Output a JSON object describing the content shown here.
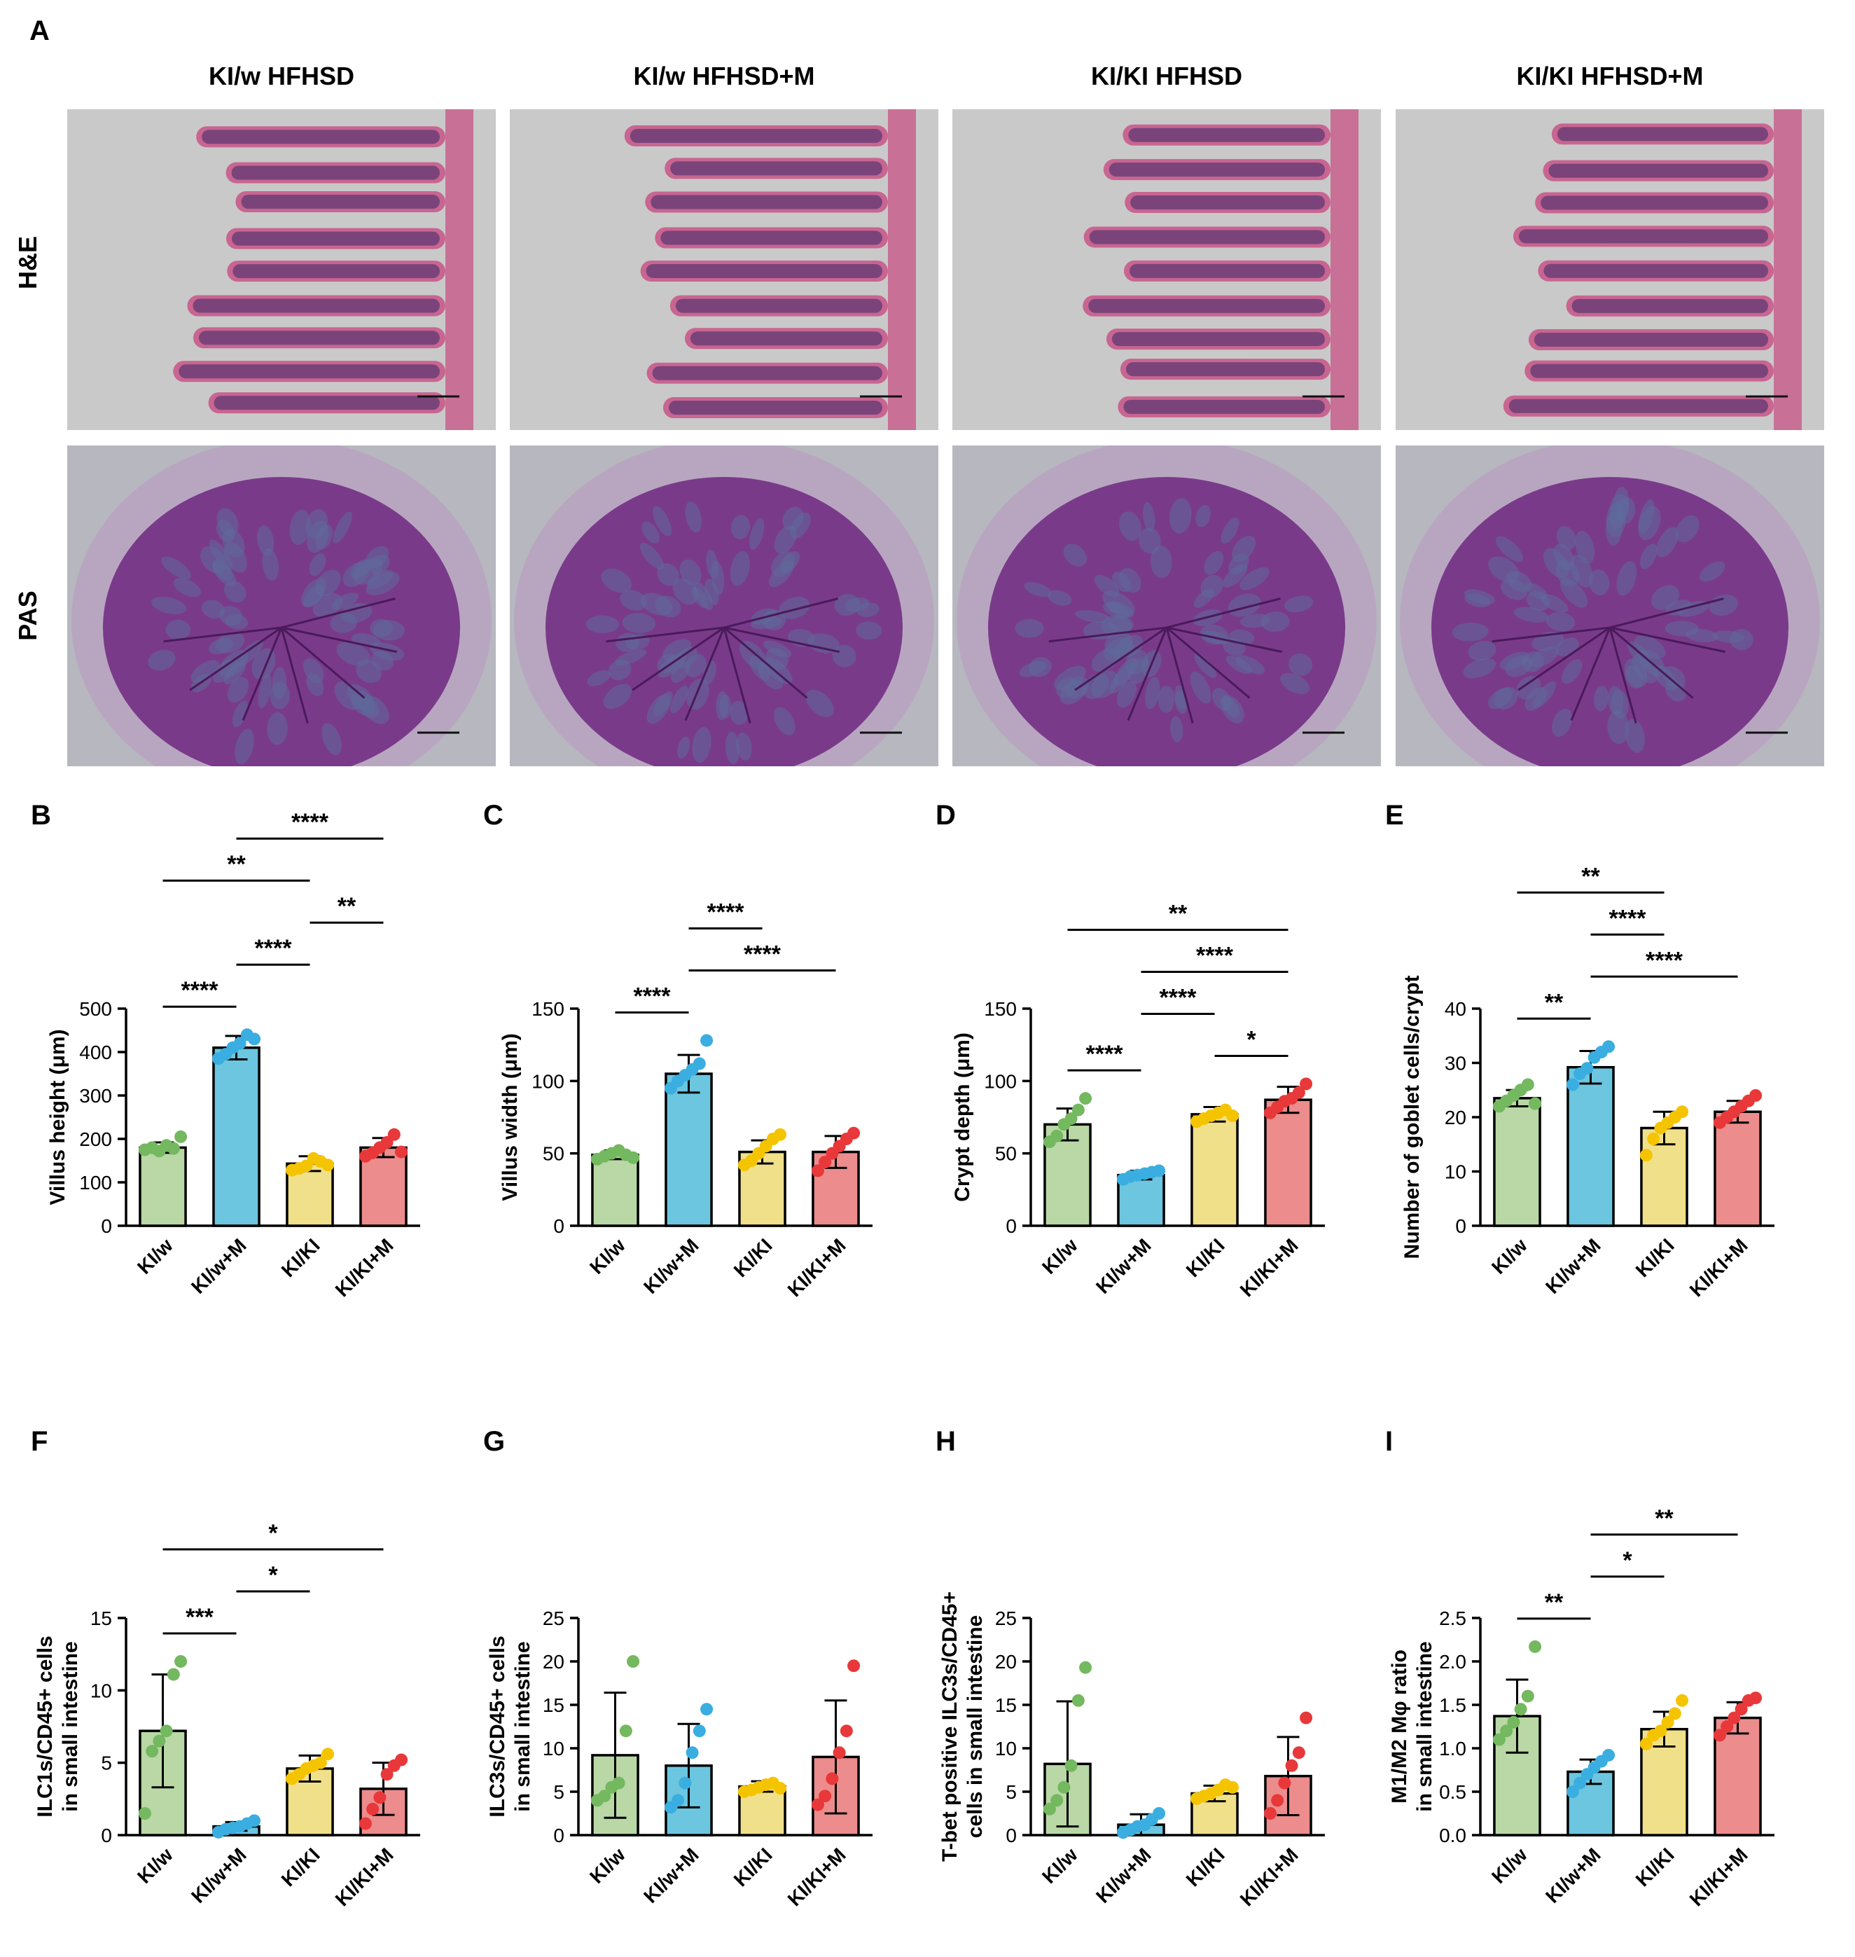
{
  "panel_letters": {
    "A": "A",
    "B": "B",
    "C": "C",
    "D": "D",
    "E": "E",
    "F": "F",
    "G": "G",
    "H": "H",
    "I": "I"
  },
  "histology": {
    "columns": [
      "KI/w HFHSD",
      "KI/w HFHSD+M",
      "KI/KI HFHSD",
      "KI/KI HFHSD+M"
    ],
    "rows": [
      "H&E",
      "PAS"
    ],
    "colors": {
      "he_background": "#c9c9c9",
      "he_tissue": "#c85a8a",
      "he_nuclei": "#3a2a6a",
      "pas_background": "#b7b7bf",
      "pas_tissue": "#7a3a8a",
      "pas_muscle": "#b8a6c0"
    }
  },
  "group_colors": {
    "KI/w": "#74b85f",
    "KI/w+M": "#3aaee0",
    "KI/KI": "#f5c400",
    "KI/KI+M": "#e8383a"
  },
  "bar_fills": {
    "KI/w": "#b9d8a6",
    "KI/w+M": "#6cc6df",
    "KI/KI": "#f1e08a",
    "KI/KI+M": "#ec8c8c"
  },
  "chart_data": [
    {
      "panel": "B",
      "type": "bar",
      "categories": [
        "KI/w",
        "KI/w+M",
        "KI/KI",
        "KI/KI+M"
      ],
      "ylabel": "Villus height (μm)",
      "ylim": [
        0,
        500
      ],
      "yticks": [
        0,
        100,
        200,
        300,
        400,
        500
      ],
      "values": [
        180,
        410,
        143,
        180
      ],
      "errors": [
        12,
        27,
        17,
        22
      ],
      "points": [
        [
          175,
          180,
          172,
          185,
          178,
          205
        ],
        [
          385,
          395,
          410,
          420,
          440,
          430
        ],
        [
          128,
          132,
          138,
          155,
          148,
          140
        ],
        [
          160,
          168,
          180,
          192,
          210,
          170
        ]
      ],
      "significance": [
        {
          "from": 0,
          "to": 1,
          "label": "****"
        },
        {
          "from": 1,
          "to": 2,
          "label": "****"
        },
        {
          "from": 2,
          "to": 3,
          "label": "**"
        },
        {
          "from": 0,
          "to": 2,
          "label": "**"
        },
        {
          "from": 1,
          "to": 3,
          "label": "****"
        }
      ]
    },
    {
      "panel": "C",
      "type": "bar",
      "categories": [
        "KI/w",
        "KI/w+M",
        "KI/KI",
        "KI/KI+M"
      ],
      "ylabel": "Villus width (μm)",
      "ylim": [
        0,
        150
      ],
      "yticks": [
        0,
        50,
        100,
        150
      ],
      "values": [
        49,
        105,
        51,
        51
      ],
      "errors": [
        3,
        13,
        8,
        11
      ],
      "points": [
        [
          46,
          48,
          50,
          52,
          49,
          47
        ],
        [
          95,
          100,
          104,
          108,
          112,
          128
        ],
        [
          42,
          45,
          50,
          55,
          60,
          63
        ],
        [
          38,
          44,
          50,
          55,
          60,
          64
        ]
      ],
      "significance": [
        {
          "from": 0,
          "to": 1,
          "label": "****"
        },
        {
          "from": 1,
          "to": 3,
          "label": "****"
        },
        {
          "from": 1,
          "to": 2,
          "label": "****"
        }
      ]
    },
    {
      "panel": "D",
      "type": "bar",
      "categories": [
        "KI/w",
        "KI/w+M",
        "KI/KI",
        "KI/KI+M"
      ],
      "ylabel": "Crypt depth (μm)",
      "ylim": [
        0,
        150
      ],
      "yticks": [
        0,
        50,
        100,
        150
      ],
      "values": [
        70,
        35,
        77,
        87
      ],
      "errors": [
        11,
        3,
        5,
        9
      ],
      "points": [
        [
          58,
          62,
          70,
          74,
          80,
          88
        ],
        [
          32,
          34,
          35,
          36,
          37,
          38
        ],
        [
          72,
          74,
          76,
          78,
          80,
          76
        ],
        [
          78,
          82,
          86,
          88,
          92,
          98
        ]
      ],
      "significance": [
        {
          "from": 0,
          "to": 1,
          "label": "****"
        },
        {
          "from": 2,
          "to": 3,
          "label": "*"
        },
        {
          "from": 1,
          "to": 2,
          "label": "****"
        },
        {
          "from": 1,
          "to": 3,
          "label": "****"
        },
        {
          "from": 0,
          "to": 3,
          "label": "**"
        }
      ]
    },
    {
      "panel": "E",
      "type": "bar",
      "categories": [
        "KI/w",
        "KI/w+M",
        "KI/KI",
        "KI/KI+M"
      ],
      "ylabel": "Number of goblet cells/crypt",
      "ylim": [
        0,
        40
      ],
      "yticks": [
        0,
        10,
        20,
        30,
        40
      ],
      "values": [
        23.5,
        29.2,
        18,
        21
      ],
      "errors": [
        1.5,
        3,
        3,
        2
      ],
      "points": [
        [
          22,
          23,
          24,
          25,
          26,
          22.5
        ],
        [
          26,
          28,
          29,
          31,
          32,
          33
        ],
        [
          13,
          16,
          18,
          19,
          20,
          21
        ],
        [
          19,
          20,
          21,
          22,
          23,
          24
        ]
      ],
      "significance": [
        {
          "from": 0,
          "to": 1,
          "label": "**"
        },
        {
          "from": 1,
          "to": 3,
          "label": "****"
        },
        {
          "from": 1,
          "to": 2,
          "label": "****"
        },
        {
          "from": 0,
          "to": 2,
          "label": "**"
        }
      ]
    },
    {
      "panel": "F",
      "type": "bar",
      "categories": [
        "KI/w",
        "KI/w+M",
        "KI/KI",
        "KI/KI+M"
      ],
      "ylabel": "ILC1s/CD45+ cells\nin small intestine",
      "ylim": [
        0,
        15
      ],
      "yticks": [
        0,
        5,
        10,
        15
      ],
      "values": [
        7.2,
        0.6,
        4.6,
        3.2
      ],
      "errors": [
        3.9,
        0.3,
        0.9,
        1.8
      ],
      "points": [
        [
          1.5,
          5.8,
          6.5,
          7.2,
          11.1,
          12
        ],
        [
          0.2,
          0.4,
          0.5,
          0.6,
          0.8,
          1.0
        ],
        [
          3.9,
          4.2,
          4.6,
          4.8,
          5.0,
          5.6
        ],
        [
          0.8,
          1.8,
          2.6,
          4.2,
          4.8,
          5.2
        ]
      ],
      "significance": [
        {
          "from": 0,
          "to": 1,
          "label": "***"
        },
        {
          "from": 1,
          "to": 2,
          "label": "*"
        },
        {
          "from": 0,
          "to": 3,
          "label": "*"
        }
      ]
    },
    {
      "panel": "G",
      "type": "bar",
      "categories": [
        "KI/w",
        "KI/w+M",
        "KI/KI",
        "KI/KI+M"
      ],
      "ylabel": "ILC3s/CD45+ cells\nin small intestine",
      "ylim": [
        0,
        25
      ],
      "yticks": [
        0,
        5,
        10,
        15,
        20,
        25
      ],
      "values": [
        9.2,
        8.0,
        5.6,
        9.0
      ],
      "errors": [
        7.2,
        4.8,
        0.6,
        6.5
      ],
      "points": [
        [
          4.0,
          4.5,
          5.5,
          6.0,
          12,
          20
        ],
        [
          3.2,
          4.0,
          6.0,
          9.5,
          12,
          14.5
        ],
        [
          5.0,
          5.2,
          5.5,
          5.8,
          6.0,
          5.4
        ],
        [
          3.5,
          4.5,
          6.5,
          9.5,
          12,
          19.5
        ]
      ],
      "significance": []
    },
    {
      "panel": "H",
      "type": "bar",
      "categories": [
        "KI/w",
        "KI/w+M",
        "KI/KI",
        "KI/KI+M"
      ],
      "ylabel": "T-bet positive ILC3s/CD45+\ncells in small intestine",
      "ylim": [
        0,
        25
      ],
      "yticks": [
        0,
        5,
        10,
        15,
        20,
        25
      ],
      "values": [
        8.2,
        1.2,
        4.8,
        6.8
      ],
      "errors": [
        7.2,
        1.2,
        0.9,
        4.5
      ],
      "points": [
        [
          3.0,
          4.0,
          5.5,
          8.0,
          15.5,
          19.3
        ],
        [
          0.3,
          0.6,
          1.0,
          1.2,
          1.8,
          2.5
        ],
        [
          4.2,
          4.5,
          4.8,
          5.2,
          5.8,
          5.5
        ],
        [
          2.5,
          4.0,
          6.0,
          8.0,
          9.5,
          13.5
        ]
      ],
      "significance": []
    },
    {
      "panel": "I",
      "type": "bar",
      "categories": [
        "KI/w",
        "KI/w+M",
        "KI/KI",
        "KI/KI+M"
      ],
      "ylabel": "M1/M2 Mφ ratio\nin small intestine",
      "ylim": [
        0,
        2.5
      ],
      "yticks": [
        "0.0",
        "0.5",
        "1.0",
        "1.5",
        "2.0",
        "2.5"
      ],
      "yticks_num": [
        0,
        0.5,
        1.0,
        1.5,
        2.0,
        2.5
      ],
      "values": [
        1.37,
        0.73,
        1.22,
        1.35
      ],
      "errors": [
        0.42,
        0.14,
        0.2,
        0.18
      ],
      "points": [
        [
          1.1,
          1.2,
          1.3,
          1.45,
          1.6,
          2.17
        ],
        [
          0.5,
          0.6,
          0.7,
          0.78,
          0.85,
          0.92
        ],
        [
          1.05,
          1.15,
          1.2,
          1.3,
          1.4,
          1.55
        ],
        [
          1.15,
          1.25,
          1.35,
          1.45,
          1.55,
          1.58
        ]
      ],
      "significance": [
        {
          "from": 0,
          "to": 1,
          "label": "**"
        },
        {
          "from": 1,
          "to": 2,
          "label": "*"
        },
        {
          "from": 1,
          "to": 3,
          "label": "**"
        }
      ]
    }
  ]
}
